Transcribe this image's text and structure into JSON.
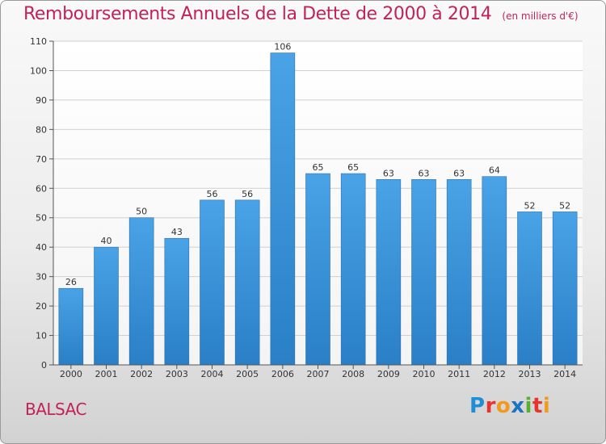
{
  "header": {
    "title": "Remboursements Annuels de la Dette de 2000 à 2014",
    "subtitle": "(en milliers d'€)"
  },
  "footer": {
    "town": "BALSAC",
    "brand": "Proxiti",
    "brand_letters": [
      {
        "char": "P",
        "color": "#1c8fd8"
      },
      {
        "char": "r",
        "color": "#e7342c"
      },
      {
        "char": "o",
        "color": "#f29a1e"
      },
      {
        "char": "x",
        "color": "#1a74c2"
      },
      {
        "char": "i",
        "color": "#58b031"
      },
      {
        "char": "t",
        "color": "#e7342c"
      },
      {
        "char": "i",
        "color": "#f29a1e"
      }
    ]
  },
  "chart_data": {
    "type": "bar",
    "title": "Remboursements Annuels de la Dette de 2000 à 2014",
    "subtitle": "(en milliers d'€)",
    "categories": [
      "2000",
      "2001",
      "2002",
      "2003",
      "2004",
      "2005",
      "2006",
      "2007",
      "2008",
      "2009",
      "2010",
      "2011",
      "2012",
      "2013",
      "2014"
    ],
    "values": [
      26,
      40,
      50,
      43,
      56,
      56,
      106,
      65,
      65,
      63,
      63,
      63,
      64,
      52,
      52
    ],
    "ylim": [
      0,
      110
    ],
    "yticks": [
      0,
      10,
      20,
      30,
      40,
      50,
      60,
      70,
      80,
      90,
      100,
      110
    ],
    "xlabel": "",
    "ylabel": "",
    "grid": true,
    "bar_color": "#4aa3e6",
    "bar_color_dark": "#2a7fc6",
    "grid_color": "#d0d0d0",
    "label_color": "#333333"
  }
}
